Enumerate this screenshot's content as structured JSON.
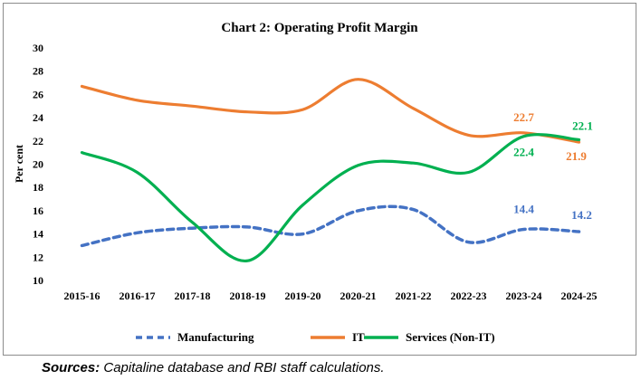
{
  "chart_data": {
    "type": "line",
    "title": "Chart 2: Operating Profit Margin",
    "ylabel": "Per cent",
    "xlabel": "",
    "ylim": [
      10,
      30
    ],
    "yticks": [
      10,
      12,
      14,
      16,
      18,
      20,
      22,
      24,
      26,
      28,
      30
    ],
    "grid": false,
    "legend_position": "bottom",
    "categories": [
      "2015-16",
      "2016-17",
      "2017-18",
      "2018-19",
      "2019-20",
      "2020-21",
      "2021-22",
      "2022-23",
      "2023-24",
      "2024-25"
    ],
    "series": [
      {
        "name": "Manufacturing",
        "color": "#4472C4",
        "style": "dashed",
        "values": [
          13.0,
          14.1,
          14.5,
          14.6,
          14.0,
          16.0,
          16.1,
          13.3,
          14.4,
          14.2
        ],
        "labels": [
          {
            "index": 8,
            "text": "14.4"
          },
          {
            "index": 9,
            "text": "14.2"
          }
        ]
      },
      {
        "name": "IT",
        "color": "#ED7D31",
        "style": "solid",
        "values": [
          26.7,
          25.5,
          25.0,
          24.5,
          24.7,
          27.3,
          24.8,
          22.5,
          22.7,
          21.9
        ],
        "labels": [
          {
            "index": 8,
            "text": "22.7"
          },
          {
            "index": 9,
            "text": "21.9"
          }
        ]
      },
      {
        "name": "Services (Non-IT)",
        "color": "#00B050",
        "style": "solid",
        "values": [
          21.0,
          19.3,
          15.0,
          11.7,
          16.5,
          19.9,
          20.1,
          19.3,
          22.4,
          22.1
        ],
        "labels": [
          {
            "index": 8,
            "text": "22.4"
          },
          {
            "index": 9,
            "text": "22.1"
          }
        ]
      }
    ]
  },
  "source": {
    "label": "Sources:",
    "text": " Capitaline database and RBI staff calculations."
  }
}
